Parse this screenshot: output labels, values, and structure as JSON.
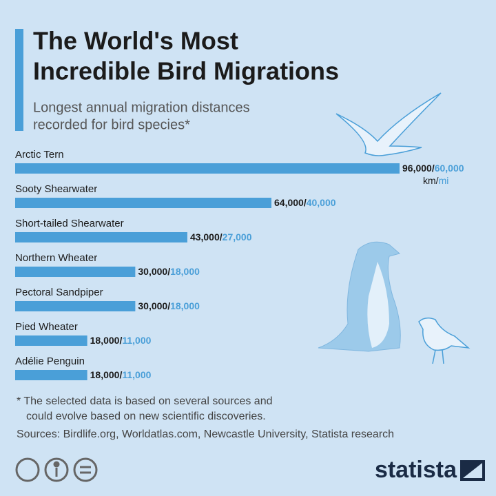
{
  "chart_data": {
    "type": "bar",
    "title_lines": [
      "The World's Most",
      "Incredible Bird Migrations"
    ],
    "subtitle_lines": [
      "Longest annual migration distances",
      "recorded for bird species*"
    ],
    "categories": [
      "Arctic Tern",
      "Sooty Shearwater",
      "Short-tailed Shearwater",
      "Northern Wheater",
      "Pectoral Sandpiper",
      "Pied Wheater",
      "Adélie Penguin"
    ],
    "series": [
      {
        "name": "km",
        "color": "#1b1b1b",
        "values": [
          96000,
          64000,
          43000,
          30000,
          30000,
          18000,
          18000
        ],
        "value_labels": [
          "96,000",
          "64,000",
          "43,000",
          "30,000",
          "30,000",
          "18,000",
          "18,000"
        ]
      },
      {
        "name": "mi",
        "color": "#4a9fd8",
        "values": [
          60000,
          40000,
          27000,
          18000,
          18000,
          11000,
          11000
        ],
        "value_labels": [
          "60,000",
          "40,000",
          "27,000",
          "18,000",
          "18,000",
          "11,000",
          "11,000"
        ]
      }
    ],
    "label_separator": "/",
    "bar_color": "#4a9fd8",
    "footnote_lines": [
      "* The selected data is based on several sources and",
      "could evolve based on new scientific discoveries."
    ],
    "source": "Sources: Birdlife.org, Worldatlas.com, Newcastle University, Statista research",
    "brand": "statista"
  }
}
